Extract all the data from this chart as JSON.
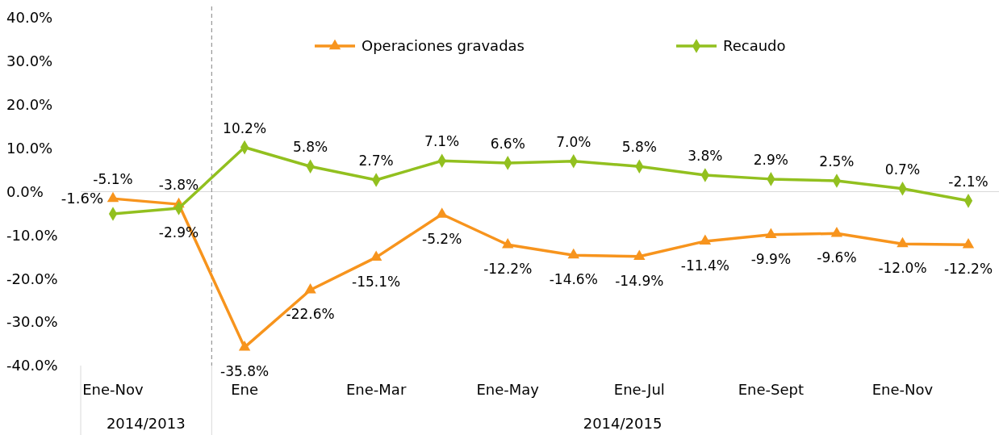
{
  "chart_data": {
    "type": "line",
    "categories": [
      "Ene-Nov",
      null,
      "Ene",
      null,
      "Ene-Mar",
      null,
      "Ene-May",
      null,
      "Ene-Jul",
      null,
      "Ene-Sept",
      null,
      "Ene-Nov",
      null
    ],
    "series": [
      {
        "name": "Operaciones gravadas",
        "color": "#f7941d",
        "marker": "triangle",
        "values": [
          -1.6,
          -2.9,
          -35.8,
          -22.6,
          -15.1,
          -5.2,
          -12.2,
          -14.6,
          -14.9,
          -11.4,
          -9.9,
          -9.6,
          -12.0,
          -12.2
        ],
        "value_labels": [
          "-1.6%",
          "-2.9%",
          "-35.8%",
          "-22.6%",
          "-15.1%",
          "-5.2%",
          "-12.2%",
          "-14.6%",
          "-14.9%",
          "-11.4%",
          "-9.9%",
          "-9.6%",
          "-12.0%",
          "-12.2%"
        ]
      },
      {
        "name": "Recaudo",
        "color": "#92c01f",
        "marker": "diamond",
        "values": [
          -5.1,
          -3.8,
          10.2,
          5.8,
          2.7,
          7.1,
          6.6,
          7.0,
          5.8,
          3.8,
          2.9,
          2.5,
          0.7,
          -2.1
        ],
        "value_labels": [
          "-5.1%",
          "-3.8%",
          "10.2%",
          "5.8%",
          "2.7%",
          "7.1%",
          "6.6%",
          "7.0%",
          "5.8%",
          "3.8%",
          "2.9%",
          "2.5%",
          "0.7%",
          "-2.1%"
        ]
      }
    ],
    "ylim": [
      -40,
      40
    ],
    "yticks": [
      {
        "value": -40,
        "label": "-40.0%"
      },
      {
        "value": -30,
        "label": "-30.0%"
      },
      {
        "value": -20,
        "label": "-20.0%"
      },
      {
        "value": -10,
        "label": "-10.0%"
      },
      {
        "value": 0,
        "label": "0.0%"
      },
      {
        "value": 10,
        "label": "10.0%"
      },
      {
        "value": 20,
        "label": "20.0%"
      },
      {
        "value": 30,
        "label": "30.0%"
      },
      {
        "value": 40,
        "label": "40.0%"
      }
    ],
    "data_labels": true,
    "legend": "top",
    "line_style": "solid",
    "annotations": [
      "2014/2013",
      "2014/2015"
    ]
  }
}
